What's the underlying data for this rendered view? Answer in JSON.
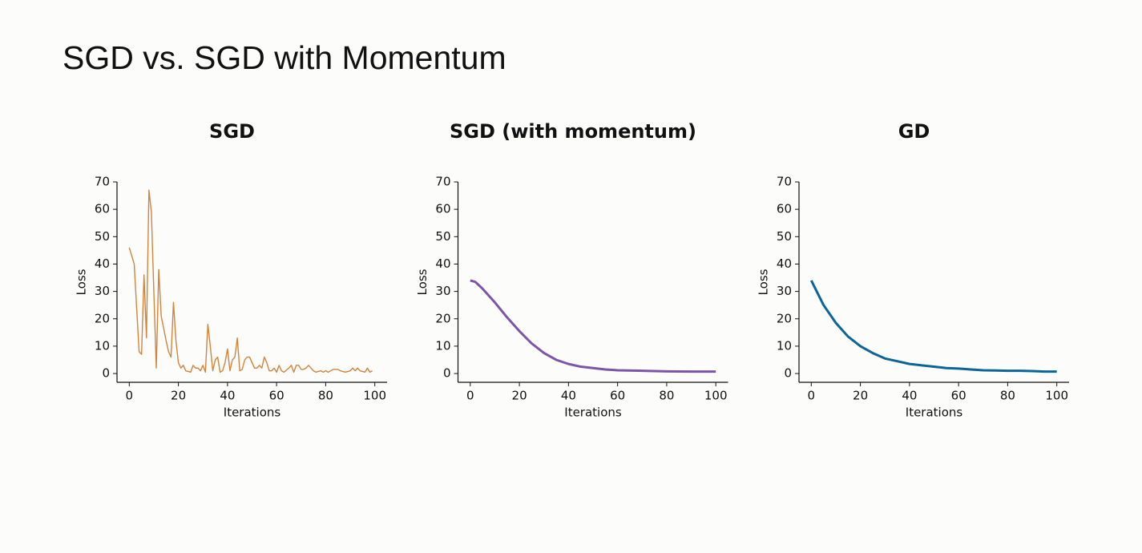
{
  "title": "SGD vs. SGD with Momentum",
  "chart_data": [
    {
      "type": "line",
      "title": "SGD",
      "x_label": "Iterations",
      "y_label": "Loss",
      "color": "#d3843c",
      "x": [
        0,
        2,
        4,
        5,
        6,
        7,
        8,
        9,
        10,
        11,
        12,
        13,
        15,
        16,
        17,
        18,
        19,
        20,
        21,
        22,
        23,
        25,
        26,
        27,
        28,
        29,
        30,
        31,
        32,
        33,
        34,
        35,
        36,
        37,
        38,
        39,
        40,
        41,
        42,
        43,
        44,
        45,
        46,
        47,
        48,
        49,
        50,
        51,
        52,
        53,
        54,
        55,
        56,
        57,
        58,
        59,
        60,
        61,
        62,
        63,
        65,
        66,
        67,
        68,
        69,
        70,
        71,
        72,
        73,
        74,
        75,
        76,
        78,
        79,
        80,
        81,
        82,
        83,
        84,
        85,
        86,
        88,
        90,
        91,
        92,
        93,
        94,
        96,
        97,
        98,
        99
      ],
      "values": [
        46,
        40,
        8,
        7,
        36,
        13,
        67,
        59,
        30,
        2,
        38,
        21,
        12,
        8,
        6,
        26,
        12,
        4,
        2,
        3,
        1,
        0.5,
        3,
        2,
        2,
        1,
        3,
        0.5,
        18,
        10,
        1,
        5,
        6,
        0.5,
        1,
        4,
        9,
        1,
        5,
        6,
        13,
        1,
        1.5,
        5,
        6,
        6,
        4,
        2,
        2,
        3,
        2,
        6,
        4,
        1,
        1,
        2,
        0.5,
        3,
        1,
        0.5,
        2,
        3,
        0.5,
        3,
        3,
        1.5,
        1.5,
        2,
        3,
        2,
        1,
        0.5,
        1,
        0.5,
        1,
        0.5,
        1,
        1.5,
        1.5,
        1.5,
        1,
        0.5,
        1,
        2,
        1,
        2,
        1,
        0.5,
        2,
        0.5,
        1
      ],
      "xlim": [
        -5,
        105
      ],
      "ylim": [
        -3.2,
        70
      ],
      "xticks": [
        0,
        20,
        40,
        60,
        80,
        100
      ],
      "yticks": [
        0,
        10,
        20,
        30,
        40,
        50,
        60,
        70
      ]
    },
    {
      "type": "line",
      "title": "SGD (with momentum)",
      "x_label": "Iterations",
      "y_label": "Loss",
      "color": "#7b55a8",
      "x": [
        0,
        2,
        5,
        10,
        15,
        20,
        25,
        30,
        35,
        40,
        45,
        50,
        55,
        60,
        70,
        80,
        90,
        100
      ],
      "values": [
        34,
        33.5,
        31,
        26,
        20.5,
        15.5,
        11,
        7.5,
        5,
        3.5,
        2.5,
        2,
        1.5,
        1.2,
        1,
        0.8,
        0.7,
        0.7
      ],
      "xlim": [
        -5,
        105
      ],
      "ylim": [
        -3.2,
        70
      ],
      "xticks": [
        0,
        20,
        40,
        60,
        80,
        100
      ],
      "yticks": [
        0,
        10,
        20,
        30,
        40,
        50,
        60,
        70
      ]
    },
    {
      "type": "line",
      "title": "GD",
      "x_label": "Iterations",
      "y_label": "Loss",
      "color": "#0b6597",
      "x": [
        0,
        5,
        10,
        15,
        20,
        25,
        30,
        35,
        40,
        45,
        50,
        55,
        60,
        65,
        70,
        75,
        80,
        85,
        90,
        95,
        100
      ],
      "values": [
        34,
        25,
        18.5,
        13.5,
        10,
        7.5,
        5.5,
        4.5,
        3.5,
        3,
        2.5,
        2,
        1.8,
        1.5,
        1.2,
        1.1,
        1,
        1,
        0.9,
        0.7,
        0.7
      ],
      "xlim": [
        -5,
        105
      ],
      "ylim": [
        -3.2,
        70
      ],
      "xticks": [
        0,
        20,
        40,
        60,
        80,
        100
      ],
      "yticks": [
        0,
        10,
        20,
        30,
        40,
        50,
        60,
        70
      ]
    }
  ]
}
